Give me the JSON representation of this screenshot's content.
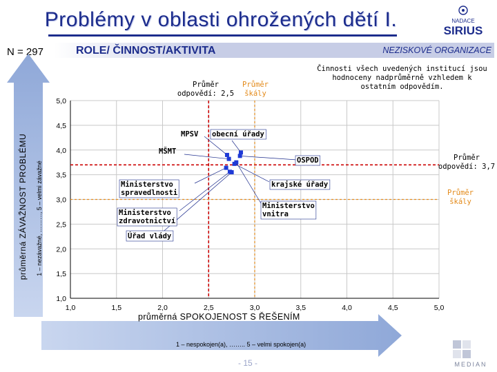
{
  "header": {
    "title": "Problémy v oblasti ohrožených dětí I.",
    "logo_text_top": "NADACE",
    "logo_text_main": "SIRIUS"
  },
  "band": {
    "left": "ROLE/ ČINNOST/AKTIVITA",
    "right": "NEZISKOVÉ ORGANIZACE"
  },
  "n_label": "N = 297",
  "note": "Činnosti všech uvedených institucí jsou hodnoceny nadprůměrně vzhledem k ostatním odpovědím.",
  "axes": {
    "y_label": "průměrná ZÁVAŽNOST PROBLÉMU",
    "y_sublabel": "1 – nezávažné, ………, 5 – velmi závažné",
    "x_label": "průměrná SPOKOJENOST S ŘEŠENÍM",
    "x_sublabel": "1 – nespokojen(a), …….. 5 – velmi spokojen(a)"
  },
  "page_number": "- 15 -",
  "footer_logo": "MEDIAN",
  "colors": {
    "accent": "#1c2c8c",
    "point": "#1f3ad6",
    "avg_response": "#cc0000",
    "avg_scale": "#e38a1a",
    "arrow": "#8fa8d8"
  },
  "chart_data": {
    "type": "scatter",
    "xlim": [
      1.0,
      5.0
    ],
    "ylim": [
      1.0,
      5.0
    ],
    "x_ticks": [
      "1,0",
      "1,5",
      "2,0",
      "2,5",
      "3,0",
      "3,5",
      "4,0",
      "4,5",
      "5,0"
    ],
    "y_ticks": [
      "1,0",
      "1,5",
      "2,0",
      "2,5",
      "3,0",
      "3,5",
      "4,0",
      "4,5",
      "5,0"
    ],
    "points": [
      {
        "name": "MPSV",
        "x": 2.7,
        "y": 3.9
      },
      {
        "name": "obecní úřady",
        "x": 2.85,
        "y": 3.95
      },
      {
        "name": "MŠMT",
        "x": 2.72,
        "y": 3.82
      },
      {
        "name": "OSPOD",
        "x": 2.84,
        "y": 3.88
      },
      {
        "name": "krajské úřady",
        "x": 2.78,
        "y": 3.72
      },
      {
        "name": "Ministerstvo spravedlnosti",
        "x": 2.69,
        "y": 3.64
      },
      {
        "name": "Ministerstvo zdravotnictví",
        "x": 2.73,
        "y": 3.56
      },
      {
        "name": "Ministerstvo vnitra",
        "x": 2.8,
        "y": 3.75
      },
      {
        "name": "Úřad vlády",
        "x": 2.75,
        "y": 3.55
      }
    ],
    "reference_lines": {
      "avg_response_x": 2.5,
      "avg_response_y": 3.7,
      "avg_scale_x": 3.0,
      "avg_scale_y": 3.0
    },
    "annotations": {
      "avg_response_x_label": "Průměr odpovědí: 2,5",
      "avg_scale_x_label": "Průměr škály",
      "avg_response_y_label": "Průměr odpovědí: 3,7",
      "avg_scale_y_label": "Průměr škály"
    }
  }
}
